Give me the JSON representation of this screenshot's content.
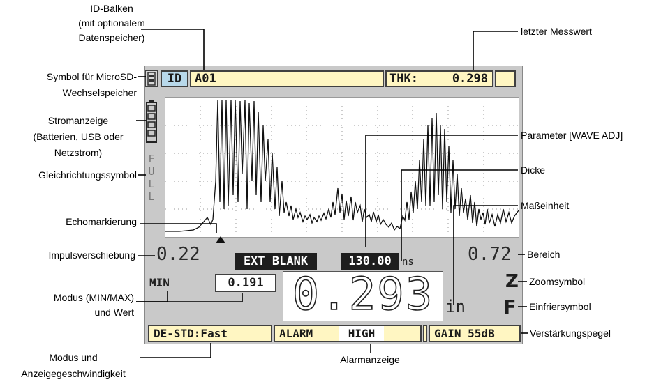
{
  "callouts": {
    "id_bar": [
      "ID-Balken",
      "(mit optionalem",
      "Datenspeicher)"
    ],
    "last_value": "letzter Messwert",
    "microsd": [
      "Symbol für MicroSD-",
      "Wechselspeicher"
    ],
    "power": [
      "Stromanzeige",
      "(Batterien, USB oder",
      "Netzstrom)"
    ],
    "rectification": "Gleichrichtungssymbol",
    "wave_adj": "Parameter [WAVE ADJ]",
    "thickness": "Dicke",
    "unit_label": "Maßeinheit",
    "echo_marker": "Echomarkierung",
    "pulse_shift": "Impulsverschiebung",
    "range": "Bereich",
    "zoom": "Zoomsymbol",
    "mode": [
      "Modus (MIN/MAX)",
      "und Wert"
    ],
    "freeze": "Einfriersymbol",
    "gain_level": "Verstärkungspegel",
    "mode_speed": [
      "Modus und",
      "Anzeigegeschwindigkeit"
    ],
    "alarm_indicator": "Alarmanzeige"
  },
  "screen": {
    "id_tag": "ID",
    "id_value": "A01",
    "thk_label": "THK:",
    "thk_value": "0.298",
    "rect_letters": [
      "F",
      "U",
      "L",
      "L"
    ],
    "pulse_shift_value": "0.22",
    "range_value": "0.72",
    "ext_blank": "EXT BLANK",
    "wave_value": "130.00",
    "wave_unit": "ns",
    "minmax_mode": "MIN",
    "minmax_value": "0.191",
    "thickness_value": "0.293",
    "unit": "in",
    "zoom_icon": "Z",
    "freeze_icon": "F",
    "mode_speed_value": "DE-STD:Fast",
    "alarm_label": "ALARM",
    "alarm_value": "HIGH",
    "gain_value": "GAIN 55dB"
  },
  "icons": {
    "microsd": "microsd-card-icon",
    "battery": "battery-level-icon",
    "echo": "echo-marker-triangle-icon"
  },
  "colors": {
    "screen_bg": "#c9c9c9",
    "field_yellow": "#fff6c2",
    "badge_dark": "#1e1e1e",
    "id_tag_bg": "#b8d8ea"
  }
}
